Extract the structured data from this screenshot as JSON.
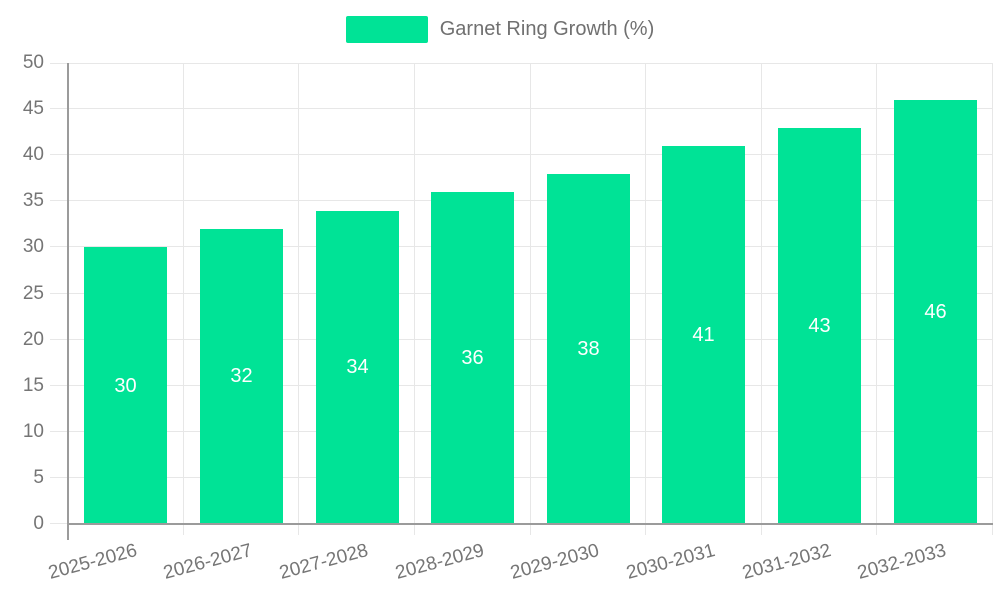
{
  "chart_data": {
    "type": "bar",
    "title": "Garnet Ring Growth (%)",
    "categories": [
      "2025-2026",
      "2026-2027",
      "2027-2028",
      "2028-2029",
      "2029-2030",
      "2030-2031",
      "2031-2032",
      "2032-2033"
    ],
    "values": [
      30,
      32,
      34,
      36,
      38,
      41,
      43,
      46
    ],
    "xlabel": "",
    "ylabel": "",
    "ylim": [
      0,
      50
    ],
    "ytick_step": 5,
    "yticks": [
      0,
      5,
      10,
      15,
      20,
      25,
      30,
      35,
      40,
      45,
      50
    ],
    "grid": "both",
    "legend_position": "top",
    "bar_labels_inside": true,
    "colors": {
      "bar": "#00E396",
      "bar_label": "#FFFFFF",
      "grid_line": "#E7E7E7",
      "axis_line": "#9B9B9B",
      "tick_label": "#757575",
      "legend_text": "#707070",
      "background": "#FFFFFF"
    }
  }
}
